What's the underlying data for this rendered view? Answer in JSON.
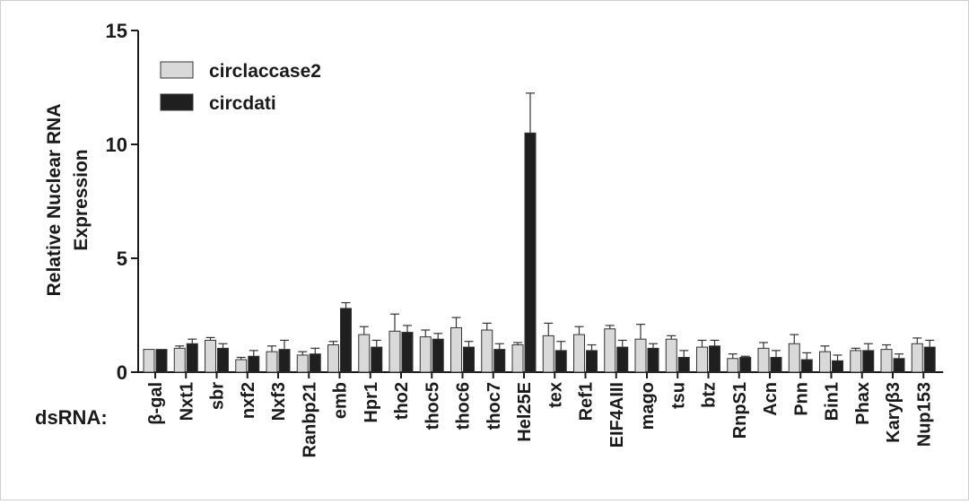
{
  "chart_data": {
    "type": "bar",
    "ylabel_lines": [
      "Relative Nuclear RNA",
      "Expression"
    ],
    "xlabel": "dsRNA:",
    "ylim": [
      0,
      15
    ],
    "yticks": [
      0,
      5,
      10,
      15
    ],
    "legend_position": "top-left",
    "categories": [
      "β-gal",
      "Nxt1",
      "sbr",
      "nxf2",
      "Nxf3",
      "Ranbp21",
      "emb",
      "Hpr1",
      "tho2",
      "thoc5",
      "thoc6",
      "thoc7",
      "Hel25E",
      "tex",
      "Ref1",
      "EIF4AIII",
      "mago",
      "tsu",
      "btz",
      "RnpS1",
      "Acn",
      "Pnn",
      "Bin1",
      "Phax",
      "Karyβ3",
      "Nup153"
    ],
    "series": [
      {
        "name": "circlaccase2",
        "color": "#d9d9d9",
        "values": [
          1.0,
          1.05,
          1.4,
          0.55,
          0.9,
          0.75,
          1.2,
          1.65,
          1.8,
          1.55,
          1.95,
          1.85,
          1.2,
          1.6,
          1.65,
          1.9,
          1.45,
          1.45,
          1.1,
          0.6,
          1.05,
          1.25,
          0.9,
          0.95,
          1.0,
          1.25
        ],
        "errors": [
          0.0,
          0.1,
          0.12,
          0.1,
          0.25,
          0.15,
          0.15,
          0.35,
          0.75,
          0.3,
          0.45,
          0.3,
          0.1,
          0.55,
          0.35,
          0.15,
          0.65,
          0.15,
          0.3,
          0.2,
          0.25,
          0.4,
          0.25,
          0.1,
          0.2,
          0.25
        ]
      },
      {
        "name": "circdati",
        "color": "#1f1f1f",
        "values": [
          1.0,
          1.25,
          1.05,
          0.7,
          1.0,
          0.8,
          2.8,
          1.1,
          1.75,
          1.45,
          1.1,
          1.0,
          10.5,
          0.95,
          0.95,
          1.1,
          1.05,
          0.65,
          1.15,
          0.65,
          0.65,
          0.55,
          0.5,
          0.95,
          0.6,
          1.1
        ],
        "errors": [
          0.0,
          0.2,
          0.2,
          0.25,
          0.4,
          0.25,
          0.25,
          0.3,
          0.3,
          0.25,
          0.25,
          0.25,
          1.75,
          0.4,
          0.25,
          0.3,
          0.2,
          0.3,
          0.25,
          0.05,
          0.3,
          0.3,
          0.25,
          0.3,
          0.2,
          0.3
        ]
      }
    ]
  }
}
